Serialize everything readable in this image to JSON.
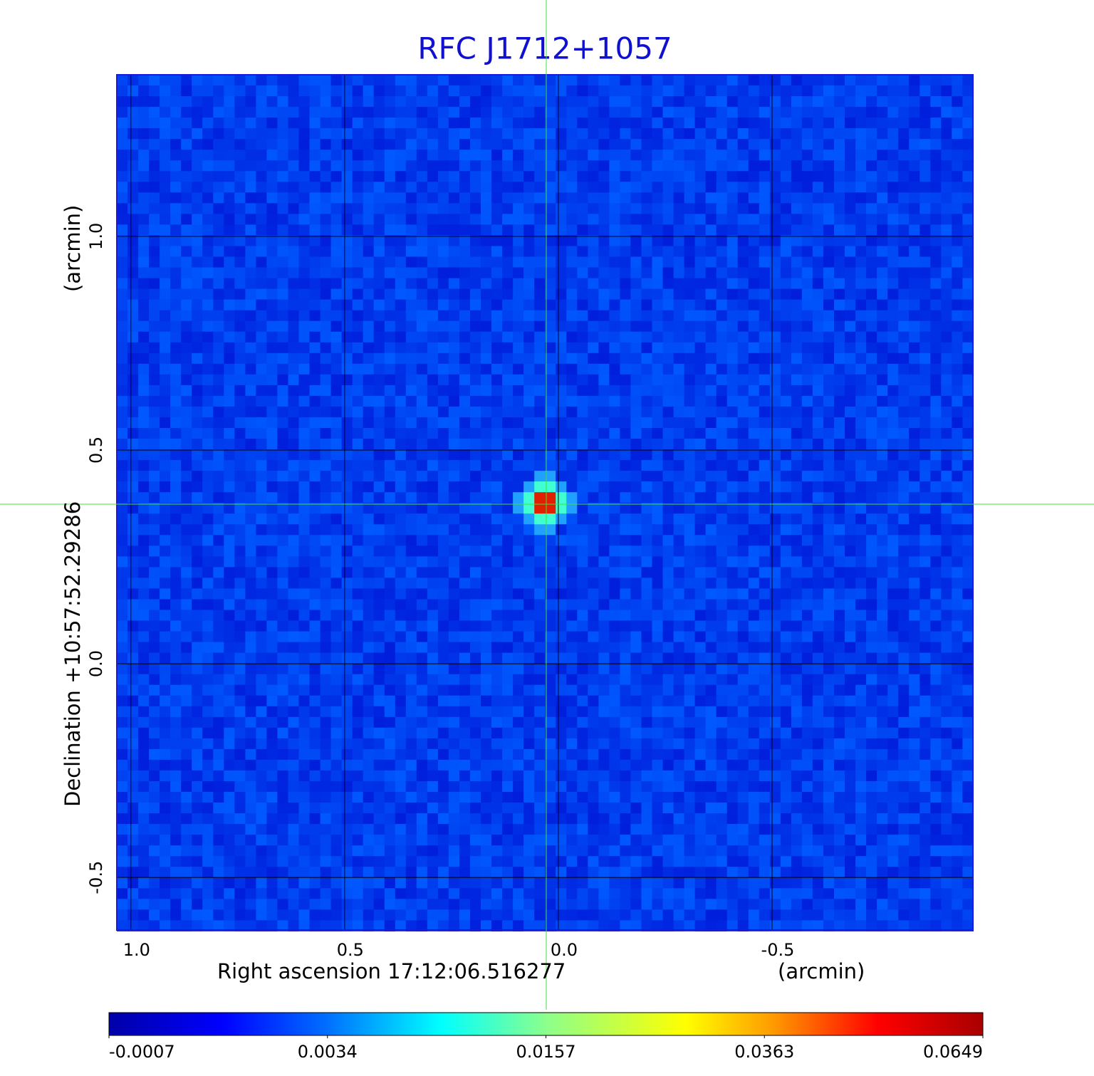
{
  "chart_data": {
    "type": "image",
    "title": "RFC J1712+1057",
    "x_label": "Right ascension  17:12:06.516277",
    "x_unit": "(arcmin)",
    "y_label": "Declination  +10:57:52.29286",
    "y_unit": "(arcmin)",
    "xlim": [
      1.033,
      -0.97
    ],
    "ylim": [
      -0.623,
      1.378
    ],
    "xticks": [
      {
        "value": 1,
        "label": "1.0"
      },
      {
        "value": 0.5,
        "label": "0.5"
      },
      {
        "value": 0,
        "label": "0.0"
      },
      {
        "value": -0.5,
        "label": "-0.5"
      }
    ],
    "yticks": [
      {
        "value": 1,
        "label": "1.0"
      },
      {
        "value": 0.5,
        "label": "0.5"
      },
      {
        "value": 0,
        "label": "0.0"
      },
      {
        "value": -0.5,
        "label": "-0.5"
      }
    ],
    "grid": true,
    "colorbar": {
      "ticks": [
        -0.0007,
        0.0034,
        0.0157,
        0.0363,
        0.0649
      ]
    }
  }
}
